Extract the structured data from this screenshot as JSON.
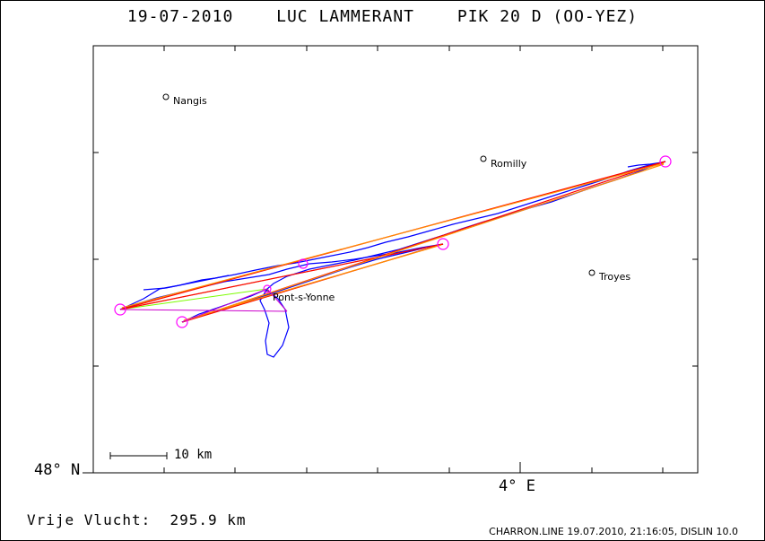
{
  "title": {
    "date": "19-07-2010",
    "pilot": "LUC LAMMERANT",
    "glider": "PIK 20 D (OO-YEZ)"
  },
  "axes": {
    "lat_label": "48° N",
    "lon_label": "4° E"
  },
  "scale": {
    "label": "10 km"
  },
  "towns": [
    {
      "name": "Nangis"
    },
    {
      "name": "Romilly"
    },
    {
      "name": "Troyes"
    },
    {
      "name": "Pont-s-Yonne"
    }
  ],
  "free_flight": {
    "label": "Vrije Vlucht:",
    "value": "295.9 km"
  },
  "footer": "CHARRON.LINE 19.07.2010, 21:16:05, DISLIN 10.0",
  "colors": {
    "track": "#0000ff",
    "task_leg": "#ff0000",
    "optimized_leg": "#ff8c00",
    "alt_leg": "#7cfc00",
    "turnpoint": "#ff00ff"
  }
}
